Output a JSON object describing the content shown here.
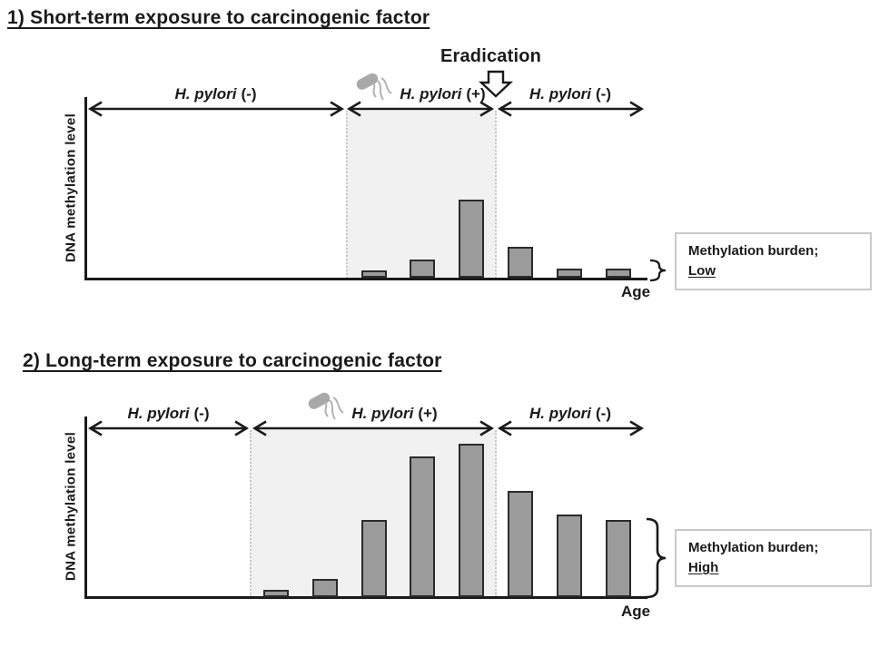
{
  "figure": {
    "panels": [
      {
        "heading": "1) Short-term exposure to carcinogenic factor",
        "eradication_label": "Eradication",
        "ylabel": "DNA methylation level",
        "xlabel": "Age",
        "phases": [
          {
            "species": "H. pylori",
            "sign": "(-)"
          },
          {
            "species": "H. pylori",
            "sign": "(+)"
          },
          {
            "species": "H. pylori",
            "sign": "(-)"
          }
        ],
        "burden_note": {
          "line1": "Methylation burden;",
          "line2": "Low"
        }
      },
      {
        "heading": "2) Long-term exposure to carcinogenic factor",
        "ylabel": "DNA methylation level",
        "xlabel": "Age",
        "phases": [
          {
            "species": "H. pylori",
            "sign": "(-)"
          },
          {
            "species": "H. pylori",
            "sign": "(+)"
          },
          {
            "species": "H. pylori",
            "sign": "(-)"
          }
        ],
        "burden_note": {
          "line1": "Methylation burden;",
          "line2": "High"
        }
      }
    ]
  },
  "chart_data": [
    {
      "type": "bar",
      "title": "1) Short-term exposure to carcinogenic factor",
      "xlabel": "Age",
      "ylabel": "DNA methylation level",
      "ylim": [
        0,
        100
      ],
      "x": "age (unlabeled timeline, left to right)",
      "phases": [
        "H. pylori (-)",
        "H. pylori (+)",
        "H. pylori (-)"
      ],
      "annotation": "Eradication at end of H. pylori (+) phase",
      "values": [
        5,
        12,
        51,
        20,
        6,
        6
      ],
      "bar_phases": [
        "H. pylori (+)",
        "H. pylori (+)",
        "H. pylori (+)",
        "post-eradication",
        "post-eradication",
        "post-eradication"
      ],
      "result_label": "Methylation burden; Low"
    },
    {
      "type": "bar",
      "title": "2) Long-term exposure to carcinogenic factor",
      "xlabel": "Age",
      "ylabel": "DNA methylation level",
      "ylim": [
        0,
        100
      ],
      "x": "age (unlabeled timeline, left to right)",
      "phases": [
        "H. pylori (-)",
        "H. pylori (+)",
        "H. pylori (-)"
      ],
      "annotation": "no eradication arrow shown; infection phase is longer",
      "values": [
        5,
        12,
        50,
        92,
        100,
        69,
        54,
        50
      ],
      "bar_phases": [
        "H. pylori (+)",
        "H. pylori (+)",
        "H. pylori (+)",
        "H. pylori (+)",
        "H. pylori (+)",
        "post-infection",
        "post-infection",
        "post-infection"
      ],
      "result_label": "Methylation burden; High"
    }
  ],
  "colors": {
    "ink": "#1a1a1a",
    "bar_fill": "#9b9b9b",
    "bar_border": "#2b2b2b",
    "infection_region_fill": "#f1f1f1",
    "dotted_line": "#c6c6c6",
    "note_box_border": "#c9c9c9",
    "bacterium": "#a9a9a9"
  }
}
